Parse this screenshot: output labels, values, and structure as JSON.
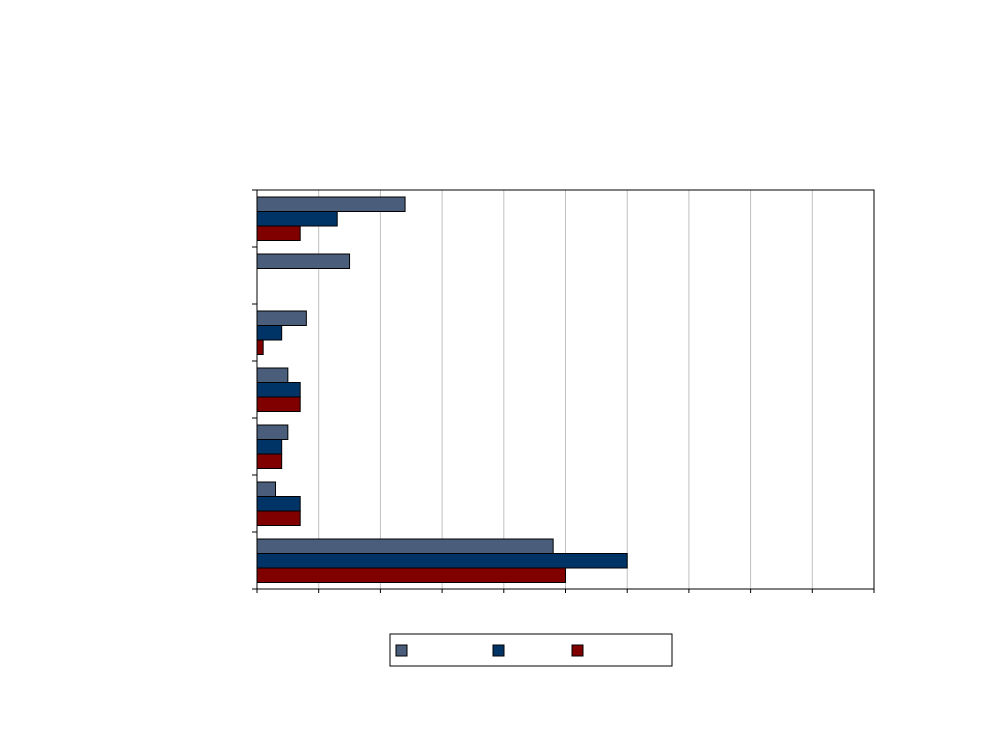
{
  "chart_data": {
    "type": "bar",
    "orientation": "horizontal",
    "title": "",
    "xlabel": "",
    "ylabel": "",
    "categories": [
      "",
      "",
      "",
      "",
      "",
      "",
      ""
    ],
    "xlim": [
      0,
      10
    ],
    "grid": true,
    "legend_position": "bottom",
    "series": [
      {
        "color": "#4a5d7a",
        "values": [
          2.4,
          1.5,
          0.8,
          0.5,
          0.5,
          0.3,
          4.8
        ]
      },
      {
        "color": "#003366",
        "values": [
          1.3,
          0.0,
          0.4,
          0.7,
          0.4,
          0.7,
          6.0
        ]
      },
      {
        "color": "#800000",
        "values": [
          0.7,
          0.0,
          0.1,
          0.7,
          0.4,
          0.7,
          5.0
        ]
      }
    ]
  }
}
